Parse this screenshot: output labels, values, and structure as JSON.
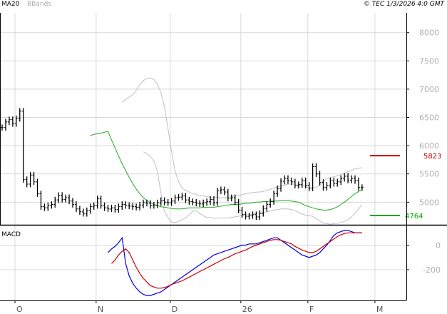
{
  "header": {
    "indicators": [
      "MA20",
      "BBands"
    ],
    "source": "© TEC 1/3/2026 4:0 GMT"
  },
  "colors": {
    "price": "#000000",
    "ma20": "#22aa22",
    "bbands": "#c0c0c0",
    "macd": "#0000dd",
    "signal": "#cc0000",
    "resistance": "#cc0000",
    "support": "#00aa00",
    "grid": "#d8d8d8"
  },
  "chart_data": [
    {
      "type": "ohlc",
      "name": "price",
      "indicators": [
        "MA20",
        "BBands"
      ],
      "x_labels": [
        {
          "label": "O",
          "index": 0
        },
        {
          "label": "N",
          "index": 23
        },
        {
          "label": "D",
          "index": 44
        },
        {
          "label": "26",
          "index": 64
        },
        {
          "label": "F",
          "index": 83
        },
        {
          "label": "M",
          "index": 102
        }
      ],
      "yticks": [
        5000,
        5500,
        6000,
        6500,
        7000,
        7500,
        8000
      ],
      "ylim": [
        4600,
        8350
      ],
      "close": [
        6320,
        6420,
        6460,
        6390,
        6480,
        6610,
        5400,
        5320,
        5480,
        5360,
        5150,
        4920,
        4900,
        4940,
        4960,
        5040,
        5120,
        5050,
        5080,
        5020,
        4960,
        4880,
        4830,
        4800,
        4850,
        4920,
        4940,
        5060,
        4940,
        4900,
        4880,
        4900,
        4870,
        4920,
        4960,
        4940,
        4930,
        4920,
        4910,
        4950,
        4990,
        4980,
        4940,
        4950,
        4990,
        5030,
        5000,
        4990,
        5020,
        5080,
        5090,
        5110,
        5040,
        5010,
        5000,
        4980,
        4970,
        4990,
        5010,
        5050,
        4990,
        5200,
        5220,
        5180,
        5070,
        5080,
        5000,
        4860,
        4780,
        4750,
        4760,
        4780,
        4740,
        4800,
        4890,
        4960,
        5010,
        5150,
        5240,
        5370,
        5420,
        5380,
        5360,
        5300,
        5310,
        5380,
        5300,
        5250,
        5630,
        5500,
        5350,
        5260,
        5300,
        5380,
        5330,
        5360,
        5420,
        5460,
        5390,
        5420,
        5380,
        5260,
        5260
      ],
      "ma20": [
        6180,
        6200,
        6210,
        6220,
        6240,
        6250,
        6100,
        5960,
        5820,
        5680,
        5560,
        5440,
        5330,
        5230,
        5150,
        5080,
        5030,
        4990,
        4960,
        4940,
        4920,
        4910,
        4900,
        4890,
        4880,
        4880,
        4880,
        4890,
        4900,
        4900,
        4900,
        4900,
        4910,
        4910,
        4910,
        4910,
        4920,
        4930,
        4940,
        4950,
        4960,
        4960,
        4960,
        4970,
        4980,
        4980,
        4990,
        5000,
        5000,
        5010,
        5010,
        5020,
        5020,
        5020,
        5030,
        5030,
        5030,
        5020,
        5010,
        5000,
        4970,
        4940,
        4920,
        4900,
        4880,
        4870,
        4860,
        4860,
        4870,
        4890,
        4920,
        4960,
        5000,
        5050,
        5100,
        5150,
        5190,
        5220
      ],
      "bb_upper": [
        6770,
        6820,
        6860,
        6900,
        6980,
        7080,
        7150,
        7190,
        7200,
        7170,
        7090,
        6940,
        6680,
        6300,
        5900,
        5550,
        5360,
        5250,
        5210,
        5180,
        5150,
        5140,
        5120,
        5110,
        5100,
        5090,
        5090,
        5090,
        5080,
        5080,
        5090,
        5100,
        5110,
        5120,
        5130,
        5150,
        5160,
        5170,
        5180,
        5180,
        5190,
        5210,
        5230,
        5250,
        5270,
        5280,
        5300,
        5320,
        5320,
        5320,
        5320,
        5300,
        5270,
        5250,
        5250,
        5260,
        5300,
        5370,
        5420,
        5440,
        5450,
        5470,
        5490,
        5510,
        5540,
        5560,
        5590,
        5600,
        5610
      ],
      "bb_lower": [
        5890,
        5860,
        5810,
        5730,
        5550,
        5150,
        4840,
        4730,
        4650,
        4640,
        4660,
        4690,
        4720,
        4780,
        4840,
        4850,
        4800,
        4760,
        4730,
        4730,
        4720,
        4720,
        4720,
        4720,
        4720,
        4730,
        4740,
        4750,
        4770,
        4780,
        4780,
        4790,
        4800,
        4810,
        4820,
        4830,
        4840,
        4860,
        4870,
        4880,
        4880,
        4880,
        4870,
        4850,
        4820,
        4790,
        4770,
        4760,
        4750,
        4710,
        4670,
        4630,
        4620,
        4610,
        4620,
        4630,
        4640,
        4660,
        4690,
        4740,
        4800,
        4880,
        4960
      ]
    },
    {
      "type": "line",
      "name": "MACD",
      "title": "MACD",
      "yticks": [
        0,
        -200
      ],
      "ylim": [
        -450,
        160
      ],
      "series": [
        {
          "role": "macd",
          "values": [
            -60,
            -30,
            -10,
            20,
            60,
            -150,
            -250,
            -310,
            -350,
            -380,
            -400,
            -410,
            -410,
            -400,
            -390,
            -380,
            -360,
            -340,
            -320,
            -300,
            -280,
            -260,
            -240,
            -220,
            -200,
            -180,
            -160,
            -140,
            -120,
            -100,
            -80,
            -70,
            -60,
            -50,
            -40,
            -30,
            -20,
            -10,
            0,
            0,
            10,
            10,
            10,
            20,
            30,
            40,
            50,
            60,
            60,
            40,
            20,
            0,
            -20,
            -40,
            -60,
            -80,
            -90,
            -100,
            -90,
            -80,
            -60,
            -30,
            0,
            40,
            80,
            100,
            110,
            120,
            120,
            110,
            100,
            100,
            100
          ]
        },
        {
          "role": "signal",
          "values": [
            -150,
            -120,
            -80,
            -50,
            -30,
            -60,
            -120,
            -180,
            -230,
            -270,
            -300,
            -330,
            -340,
            -350,
            -350,
            -345,
            -335,
            -320,
            -310,
            -300,
            -290,
            -275,
            -260,
            -245,
            -230,
            -215,
            -200,
            -185,
            -170,
            -155,
            -140,
            -125,
            -110,
            -100,
            -85,
            -70,
            -60,
            -50,
            -40,
            -25,
            -10,
            0,
            10,
            20,
            30,
            40,
            45,
            45,
            40,
            30,
            20,
            10,
            -10,
            -25,
            -40,
            -50,
            -60,
            -60,
            -50,
            -30,
            -10,
            10,
            30,
            50,
            70,
            85,
            95,
            100,
            100,
            100,
            100,
            100
          ]
        }
      ]
    }
  ],
  "annotations": {
    "resistance": {
      "value": 5823,
      "label": "5823"
    },
    "support": {
      "value": 4764,
      "label": "4764"
    }
  }
}
